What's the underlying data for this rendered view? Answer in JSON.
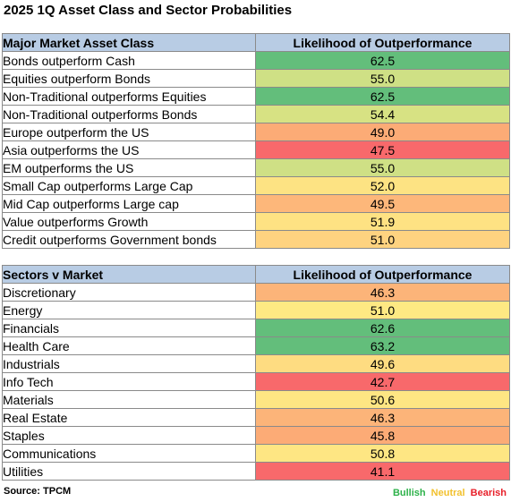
{
  "title": "2025 1Q Asset Class and Sector Probabilities",
  "colors": {
    "header_bg": "#b8cce4",
    "bullish": "#2db24a",
    "neutral": "#f2c12e",
    "bearish": "#e8202a"
  },
  "chart_data": [
    {
      "type": "table",
      "header": [
        "Major Market Asset Class",
        "Likelihood of Outperformance"
      ],
      "rows": [
        {
          "label": "Bonds outperform Cash",
          "value": "62.5",
          "color": "#63be7b"
        },
        {
          "label": "Equities outperform Bonds",
          "value": "55.0",
          "color": "#cfe085"
        },
        {
          "label": "Non-Traditional outperforms Equities",
          "value": "62.5",
          "color": "#63be7b"
        },
        {
          "label": "Non-Traditional outperforms Bonds",
          "value": "54.4",
          "color": "#d7e283"
        },
        {
          "label": "Europe outperform the US",
          "value": "49.0",
          "color": "#fcab76"
        },
        {
          "label": "Asia outperforms the US",
          "value": "47.5",
          "color": "#f8696b"
        },
        {
          "label": "EM outperforms the US",
          "value": "55.0",
          "color": "#cfe085"
        },
        {
          "label": "Small Cap outperforms Large Cap",
          "value": "52.0",
          "color": "#fde383"
        },
        {
          "label": "Mid Cap outperforms Large cap",
          "value": "49.5",
          "color": "#fdb77a"
        },
        {
          "label": "Value outperforms Growth",
          "value": "51.9",
          "color": "#fee283"
        },
        {
          "label": "Credit outperforms Government bonds",
          "value": "51.0",
          "color": "#fed380"
        }
      ]
    },
    {
      "type": "table",
      "header": [
        "Sectors v Market",
        "Likelihood of Outperformance"
      ],
      "rows": [
        {
          "label": "Discretionary",
          "value": "46.3",
          "color": "#fcb479"
        },
        {
          "label": "Energy",
          "value": "51.0",
          "color": "#fee983"
        },
        {
          "label": "Financials",
          "value": "62.6",
          "color": "#63be7b"
        },
        {
          "label": "Health Care",
          "value": "63.2",
          "color": "#63be7b"
        },
        {
          "label": "Industrials",
          "value": "49.6",
          "color": "#fedc81"
        },
        {
          "label": "Info Tech",
          "value": "42.7",
          "color": "#f8696b"
        },
        {
          "label": "Materials",
          "value": "50.6",
          "color": "#fee683"
        },
        {
          "label": "Real Estate",
          "value": "46.3",
          "color": "#fcb479"
        },
        {
          "label": "Staples",
          "value": "45.8",
          "color": "#fcab76"
        },
        {
          "label": "Communications",
          "value": "50.8",
          "color": "#fee683"
        },
        {
          "label": "Utilities",
          "value": "41.1",
          "color": "#f8696b"
        }
      ]
    }
  ],
  "footer": {
    "source": "Source: TPCM",
    "legend": [
      "Bullish",
      "Neutral",
      "Bearish"
    ]
  }
}
